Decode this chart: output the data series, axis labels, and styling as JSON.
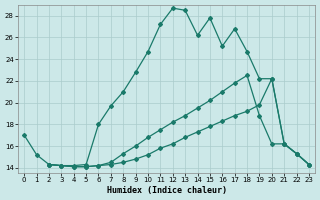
{
  "xlabel": "Humidex (Indice chaleur)",
  "background_color": "#cce8e8",
  "grid_color": "#aacccc",
  "line_color": "#1a7a6a",
  "xlim": [
    -0.5,
    23.5
  ],
  "ylim": [
    13.5,
    29.0
  ],
  "xticks": [
    0,
    1,
    2,
    3,
    4,
    5,
    6,
    7,
    8,
    9,
    10,
    11,
    12,
    13,
    14,
    15,
    16,
    17,
    18,
    19,
    20,
    21,
    22,
    23
  ],
  "yticks": [
    14,
    16,
    18,
    20,
    22,
    24,
    26,
    28
  ],
  "line1_x": [
    0,
    1,
    2,
    3,
    4,
    5,
    6,
    7,
    8,
    9,
    10,
    11,
    12,
    13,
    14,
    15,
    16,
    17,
    18,
    19,
    20,
    21,
    22,
    23
  ],
  "line1_y": [
    17.0,
    15.2,
    14.3,
    14.2,
    14.2,
    14.3,
    18.0,
    19.7,
    21.0,
    22.8,
    24.7,
    27.2,
    28.7,
    28.5,
    26.2,
    27.8,
    25.2,
    26.8,
    24.7,
    22.2,
    22.2,
    16.2,
    15.3,
    14.3
  ],
  "line2_x": [
    2,
    3,
    4,
    5,
    6,
    7,
    8,
    9,
    10,
    11,
    12,
    13,
    14,
    15,
    16,
    17,
    18,
    19,
    20,
    21,
    22,
    23
  ],
  "line2_y": [
    14.3,
    14.2,
    14.1,
    14.1,
    14.2,
    14.5,
    15.3,
    16.0,
    16.8,
    17.5,
    18.2,
    18.8,
    19.5,
    20.2,
    21.0,
    21.8,
    22.5,
    18.8,
    16.2,
    16.2,
    15.3,
    14.3
  ],
  "line3_x": [
    2,
    3,
    4,
    5,
    6,
    7,
    8,
    9,
    10,
    11,
    12,
    13,
    14,
    15,
    16,
    17,
    18,
    19,
    20,
    21,
    22,
    23
  ],
  "line3_y": [
    14.3,
    14.2,
    14.1,
    14.1,
    14.2,
    14.3,
    14.5,
    14.8,
    15.2,
    15.8,
    16.2,
    16.8,
    17.3,
    17.8,
    18.3,
    18.8,
    19.2,
    19.8,
    22.2,
    16.2,
    15.3,
    14.3
  ]
}
